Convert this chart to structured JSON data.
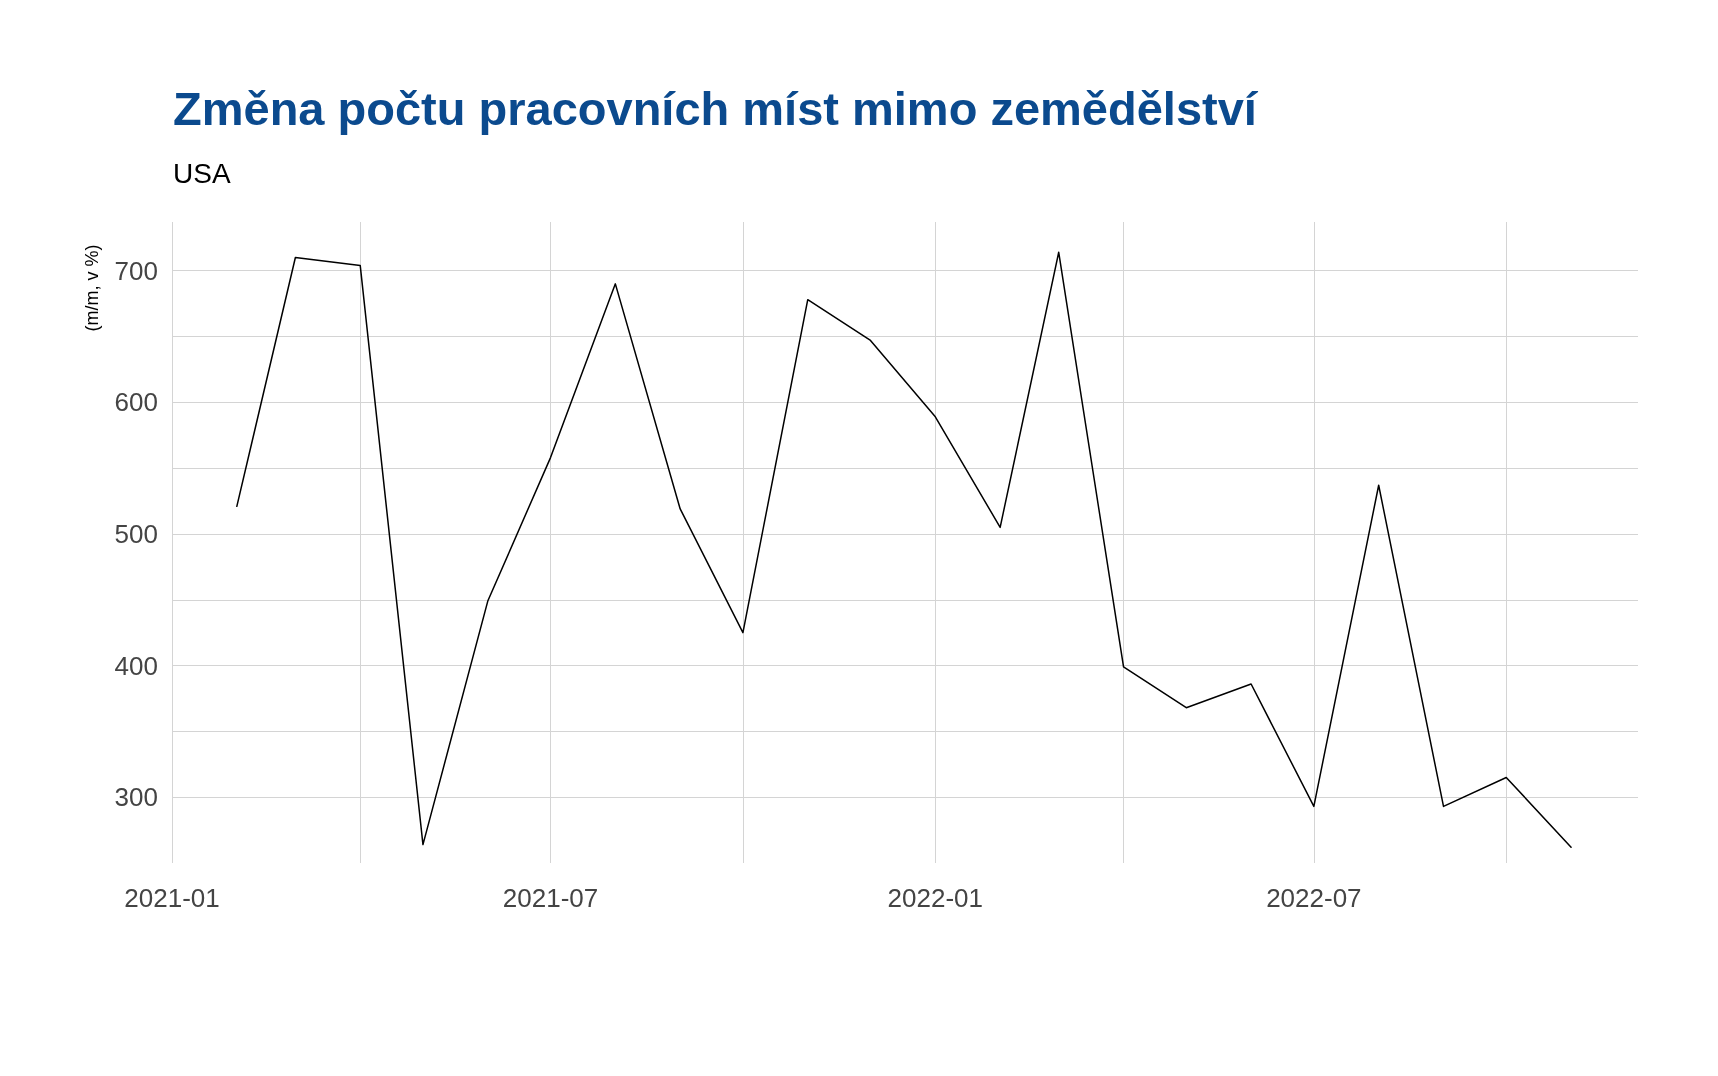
{
  "chart_data": {
    "type": "line",
    "title": "Změna počtu pracovních míst mimo zemědělství",
    "subtitle": "USA",
    "ylabel": "(m/m, v %)",
    "x": [
      "2021-02",
      "2021-03",
      "2021-04",
      "2021-05",
      "2021-06",
      "2021-07",
      "2021-08",
      "2021-09",
      "2021-10",
      "2021-11",
      "2021-12",
      "2022-01",
      "2022-02",
      "2022-03",
      "2022-04",
      "2022-05",
      "2022-06",
      "2022-07",
      "2022-08",
      "2022-09",
      "2022-10",
      "2022-11"
    ],
    "series": [
      {
        "color": "#000000",
        "values": [
          521,
          710,
          704,
          264,
          449,
          558,
          690,
          519,
          425,
          678,
          647,
          589,
          505,
          714,
          399,
          368,
          386,
          293,
          537,
          293,
          315,
          262
        ]
      }
    ],
    "xlim": [
      "2021-01-01",
      "2022-12-03"
    ],
    "xticks": [
      {
        "value": "2021-01",
        "label": "2021-01"
      },
      {
        "value": "2021-04",
        "label": null
      },
      {
        "value": "2021-07",
        "label": "2021-07"
      },
      {
        "value": "2021-10",
        "label": null
      },
      {
        "value": "2022-01",
        "label": "2022-01"
      },
      {
        "value": "2022-04",
        "label": null
      },
      {
        "value": "2022-07",
        "label": "2022-07"
      },
      {
        "value": "2022-10",
        "label": null
      }
    ],
    "ylim": [
      250,
      737
    ],
    "yticks": [
      300,
      {
        "value": 350,
        "label": null
      },
      400,
      {
        "value": 450,
        "label": null
      },
      500,
      {
        "value": 550,
        "label": null
      },
      600,
      {
        "value": 650,
        "label": null
      },
      700
    ],
    "grid": true,
    "marker": "none",
    "line_style": "solid"
  }
}
